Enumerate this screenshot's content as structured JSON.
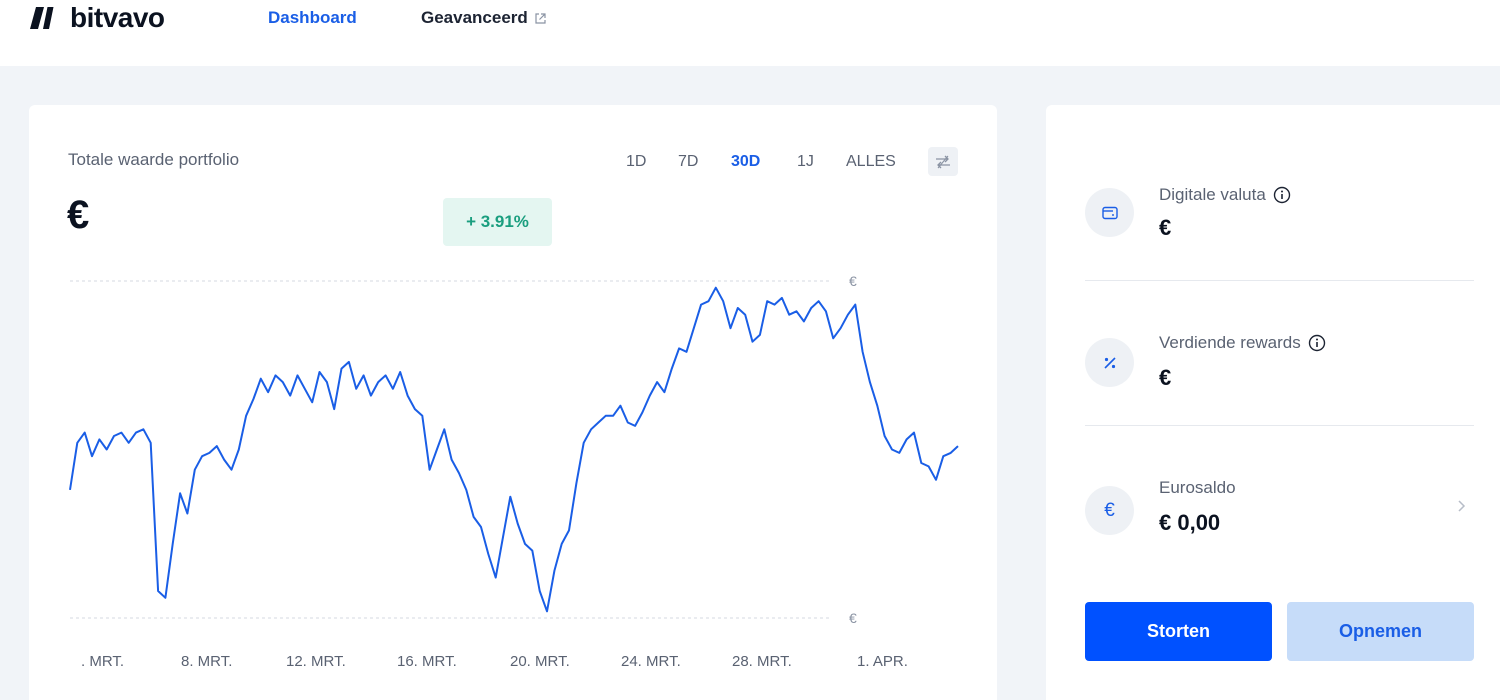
{
  "header": {
    "logo_text": "bitvavo",
    "nav": [
      {
        "label": "Dashboard",
        "active": true
      },
      {
        "label": "Geavanceerd",
        "external": true
      }
    ]
  },
  "portfolio": {
    "title": "Totale waarde portfolio",
    "value": "€",
    "change": "+ 3.91%",
    "ranges": [
      {
        "label": "1D",
        "active": false
      },
      {
        "label": "7D",
        "active": false
      },
      {
        "label": "30D",
        "active": true
      },
      {
        "label": "1J",
        "active": false
      },
      {
        "label": "ALLES",
        "active": false
      }
    ],
    "compare_icon": "compare-arrows-icon"
  },
  "chart_data": {
    "type": "line",
    "title": "",
    "xlabel": "",
    "ylabel": "",
    "x_ticks": [
      ". MRT.",
      "8. MRT.",
      "12. MRT.",
      "16. MRT.",
      "20. MRT.",
      "24. MRT.",
      "28. MRT.",
      "1. APR."
    ],
    "y_ticks": [
      "€",
      "€"
    ],
    "x_range_days": [
      5,
      35
    ],
    "y_range": [
      0,
      1
    ],
    "grid": "dashed horizontal lines at max and min",
    "series": [
      {
        "color": "#1a5ee6",
        "values": [
          0.38,
          0.52,
          0.55,
          0.48,
          0.53,
          0.5,
          0.54,
          0.55,
          0.52,
          0.55,
          0.56,
          0.52,
          0.08,
          0.06,
          0.22,
          0.37,
          0.31,
          0.44,
          0.48,
          0.49,
          0.51,
          0.47,
          0.44,
          0.5,
          0.6,
          0.65,
          0.71,
          0.67,
          0.72,
          0.7,
          0.66,
          0.72,
          0.68,
          0.64,
          0.73,
          0.7,
          0.62,
          0.74,
          0.76,
          0.68,
          0.72,
          0.66,
          0.7,
          0.72,
          0.68,
          0.73,
          0.66,
          0.62,
          0.6,
          0.44,
          0.5,
          0.56,
          0.47,
          0.43,
          0.38,
          0.3,
          0.27,
          0.19,
          0.12,
          0.24,
          0.36,
          0.28,
          0.22,
          0.2,
          0.08,
          0.02,
          0.14,
          0.22,
          0.26,
          0.4,
          0.52,
          0.56,
          0.58,
          0.6,
          0.6,
          0.63,
          0.58,
          0.57,
          0.61,
          0.66,
          0.7,
          0.67,
          0.74,
          0.8,
          0.79,
          0.86,
          0.93,
          0.94,
          0.98,
          0.94,
          0.86,
          0.92,
          0.9,
          0.82,
          0.84,
          0.94,
          0.93,
          0.95,
          0.9,
          0.91,
          0.88,
          0.92,
          0.94,
          0.91,
          0.83,
          0.86,
          0.9,
          0.93,
          0.79,
          0.7,
          0.63,
          0.54,
          0.5,
          0.49,
          0.53,
          0.55,
          0.46,
          0.45,
          0.41,
          0.48,
          0.49,
          0.51
        ]
      }
    ]
  },
  "assets": [
    {
      "label": "Digitale valuta",
      "value": "€",
      "icon": "wallet-icon",
      "info": true
    },
    {
      "label": "Verdiende rewards",
      "value": "€",
      "icon": "percent-icon",
      "info": true
    },
    {
      "label": "Eurosaldo",
      "value": "€ 0,00",
      "icon": "euro-icon",
      "icon_glyph": "€",
      "info": false
    }
  ],
  "actions": {
    "deposit": "Storten",
    "withdraw": "Opnemen"
  }
}
